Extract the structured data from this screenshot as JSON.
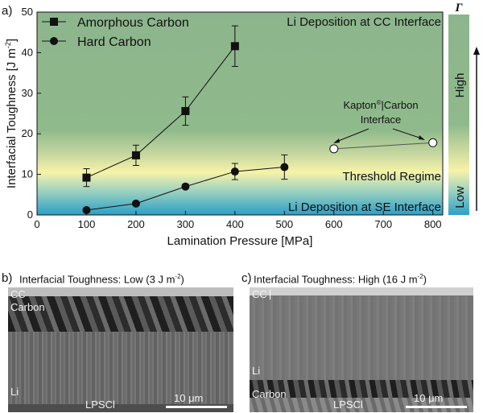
{
  "panel_a_label": "a)",
  "panel_b": {
    "label": "b)",
    "title": "Interfacial Toughness: Low (3 J m",
    "title_sup": "-2",
    "title_end": ")",
    "layer_labels": [
      "CC",
      "Carbon",
      "Li",
      "LPSCl"
    ],
    "scalebar": "10 μm"
  },
  "panel_c": {
    "label": "c)",
    "title": "Interfacial Toughness: High (16 J m",
    "title_sup": "-2",
    "title_end": ")",
    "layer_labels": [
      "CC",
      "Li",
      "Carbon",
      "LPSCl"
    ],
    "scalebar": "10 μm"
  },
  "colors": {
    "green": "#8db58d",
    "yellow": "#f7f3a8",
    "blue": "#2aa0c8"
  },
  "chart_data": {
    "type": "scatter",
    "xlabel": "Lamination Pressure [MPa]",
    "ylabel": "Interfacial Toughness [J m",
    "ylabel_sup": "-2",
    "ylabel_end": "]",
    "xlim": [
      0,
      820
    ],
    "ylim": [
      0,
      50
    ],
    "xticks": [
      0,
      100,
      200,
      300,
      400,
      500,
      600,
      700,
      800
    ],
    "yticks": [
      0,
      10,
      20,
      30,
      40,
      50
    ],
    "grid": false,
    "legend_position": "top-left",
    "series": [
      {
        "name": "Amorphous Carbon",
        "marker": "square",
        "x": [
          100,
          200,
          300,
          400
        ],
        "y": [
          9.2,
          14.7,
          25.6,
          41.6
        ],
        "err": [
          2.2,
          2.5,
          3.5,
          5.0
        ]
      },
      {
        "name": "Hard Carbon",
        "marker": "circle",
        "x": [
          100,
          200,
          300,
          400,
          500
        ],
        "y": [
          1.2,
          2.8,
          7.0,
          10.7,
          11.8
        ],
        "err": [
          0.3,
          0.5,
          0.6,
          2.0,
          3.0
        ]
      },
      {
        "marker": "open-circle",
        "x": [
          600,
          800
        ],
        "y": [
          16.3,
          17.8
        ],
        "err": [
          0,
          0
        ]
      }
    ],
    "annotations": {
      "top_region": "Li Deposition at CC Interface",
      "middle_region": "Threshold Regime",
      "bottom_region": "Li Deposition at SE Interface",
      "kapton_line1": "Kapton",
      "kapton_sup": "®",
      "kapton_line1_end": "|Carbon",
      "kapton_line2": "Interface"
    },
    "gradient_bar": {
      "symbol": "Γ",
      "high": "High",
      "low": "Low"
    }
  }
}
